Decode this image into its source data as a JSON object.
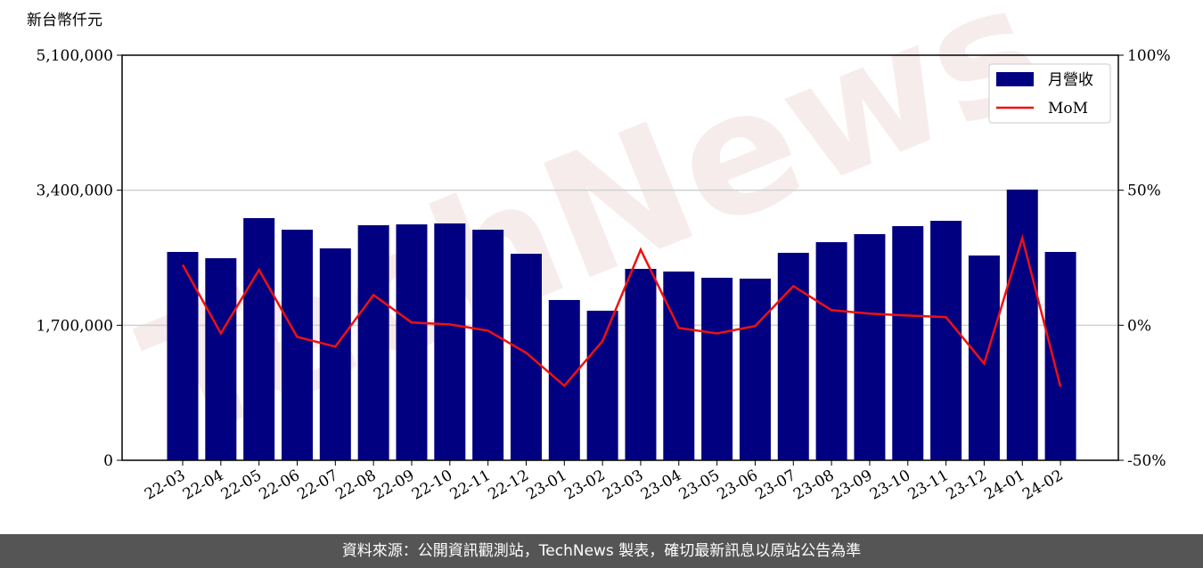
{
  "chart_data": {
    "type": "bar-line",
    "y_label": "新台幣仟元",
    "watermark": "TechNews",
    "categories": [
      "22-03",
      "22-04",
      "22-05",
      "22-06",
      "22-07",
      "22-08",
      "22-09",
      "22-10",
      "22-11",
      "22-12",
      "23-01",
      "23-02",
      "23-03",
      "23-04",
      "23-05",
      "23-06",
      "23-07",
      "23-08",
      "23-09",
      "23-10",
      "23-11",
      "23-12",
      "24-01",
      "24-02"
    ],
    "series": [
      {
        "name": "月營收",
        "type": "bar",
        "color": "#000080",
        "values": [
          2623000,
          2544000,
          3049000,
          2903000,
          2668000,
          2959000,
          2970000,
          2982000,
          2903000,
          2600000,
          2018000,
          1883000,
          2410000,
          2376000,
          2298000,
          2287000,
          2612000,
          2746000,
          2847000,
          2948000,
          3015000,
          2578000,
          3408000,
          2623000
        ]
      },
      {
        "name": "MoM",
        "type": "line",
        "axis": "y2",
        "color": "#ee1111",
        "values": [
          22.4,
          -3,
          20.5,
          -4.3,
          -7.9,
          11.2,
          1,
          0.3,
          -2,
          -10.2,
          -22.4,
          -5.9,
          28,
          -1,
          -3,
          -0.3,
          14.5,
          5.6,
          4.3,
          3.6,
          3,
          -14.2,
          32.3,
          -22.8
        ]
      }
    ],
    "ylim": [
      0,
      5100000
    ],
    "yticks": [
      0,
      {
        "value": 1700000,
        "label": "1,700,000"
      },
      {
        "value": 3400000,
        "label": "3,400,000"
      },
      {
        "value": 5100000,
        "label": "5,100,000"
      }
    ],
    "y2lim": [
      -50,
      100
    ],
    "y2ticks": [
      {
        "value": -50,
        "label": "-50%"
      },
      {
        "value": 0,
        "label": "0%"
      },
      {
        "value": 50,
        "label": "50%"
      },
      {
        "value": 100,
        "label": "100%"
      }
    ],
    "grid": true,
    "legend": "upper right",
    "footer": "資料來源：公開資訊觀測站，TechNews 製表，確切最新訊息以原站公告為準"
  }
}
